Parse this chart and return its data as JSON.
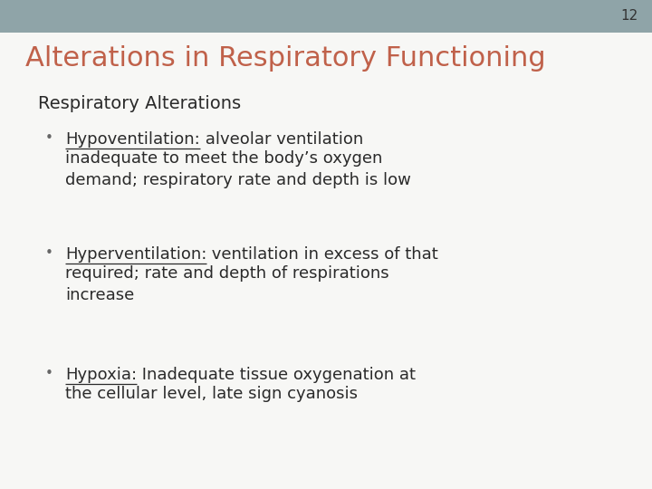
{
  "slide_number": "12",
  "title": "Alterations in Respiratory Functioning",
  "title_color": "#C0614A",
  "title_fontsize": 22,
  "subtitle": "Respiratory Alterations",
  "subtitle_color": "#2a2a2a",
  "subtitle_fontsize": 14,
  "background_color": "#F2F2F0",
  "header_bar_color": "#8FA4A8",
  "body_background": "#F7F7F5",
  "text_color": "#2a2a2a",
  "bullet_color": "#666666",
  "bullets": [
    {
      "term": "Hypoventilation:",
      "rest_line1": " alveolar ventilation",
      "rest_lines": "inadequate to meet the body’s oxygen\ndemand; respiratory rate and depth is low"
    },
    {
      "term": "Hyperventilation:",
      "rest_line1": " ventilation in excess of that",
      "rest_lines": "required; rate and depth of respirations\nincrease"
    },
    {
      "term": "Hypoxia:",
      "rest_line1": " Inadequate tissue oxygenation at",
      "rest_lines": "the cellular level, late sign cyanosis"
    }
  ],
  "bullet_term_color": "#2a2a2a",
  "bullet_text_color": "#2a2a2a",
  "bullet_fontsize": 13,
  "term_fontsize": 13,
  "slide_num_color": "#333333",
  "slide_num_fontsize": 11
}
